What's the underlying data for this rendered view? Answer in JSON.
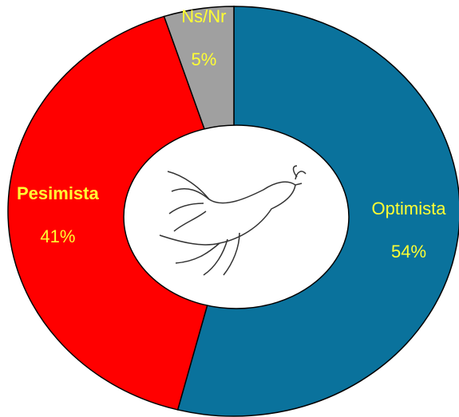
{
  "chart_data": {
    "type": "donut",
    "categories": [
      "Optimista",
      "Pesimista",
      "Ns/Nr"
    ],
    "values": [
      54,
      41,
      5
    ],
    "value_labels": [
      "54%",
      "41%",
      "5%"
    ],
    "colors": [
      "#0a729c",
      "#ff0000",
      "#a0a0a0"
    ],
    "label_color": "#ffff33"
  }
}
